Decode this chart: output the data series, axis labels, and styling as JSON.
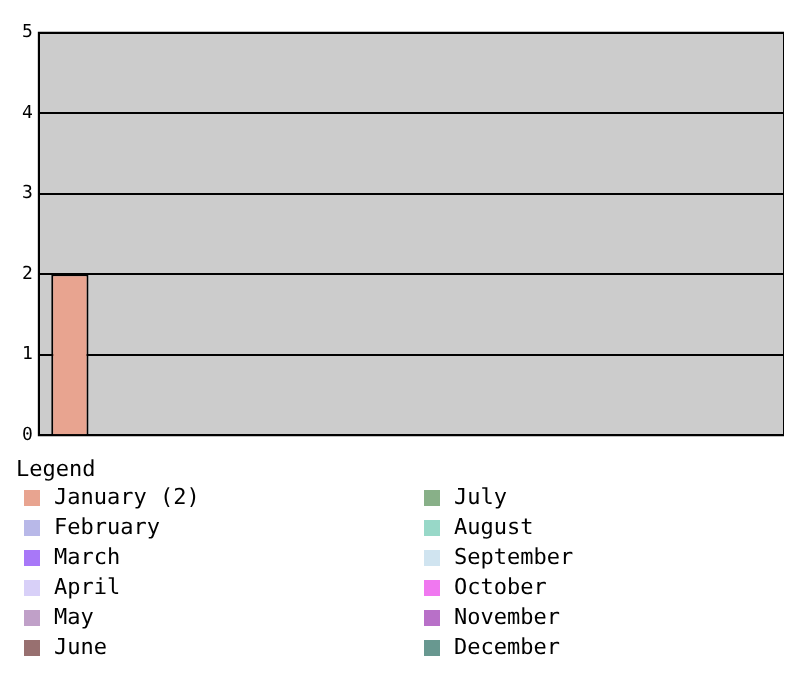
{
  "chart_data": {
    "type": "bar",
    "categories": [
      null,
      null,
      null,
      null,
      null,
      null,
      null,
      null,
      null,
      null,
      null,
      null
    ],
    "series": [
      {
        "name": "January (2)",
        "color": "#e8a490",
        "values": [
          2,
          null,
          null,
          null,
          null,
          null,
          null,
          null,
          null,
          null,
          null,
          null
        ]
      },
      {
        "name": "February",
        "color": "#b8b8e8",
        "values": [
          null,
          0,
          null,
          null,
          null,
          null,
          null,
          null,
          null,
          null,
          null,
          null
        ]
      },
      {
        "name": "March",
        "color": "#a878f8",
        "values": [
          null,
          null,
          0,
          null,
          null,
          null,
          null,
          null,
          null,
          null,
          null,
          null
        ]
      },
      {
        "name": "April",
        "color": "#d8d0f8",
        "values": [
          null,
          null,
          null,
          0,
          null,
          null,
          null,
          null,
          null,
          null,
          null,
          null
        ]
      },
      {
        "name": "May",
        "color": "#c0a0c8",
        "values": [
          null,
          null,
          null,
          null,
          0,
          null,
          null,
          null,
          null,
          null,
          null,
          null
        ]
      },
      {
        "name": "June",
        "color": "#987070",
        "values": [
          null,
          null,
          null,
          null,
          null,
          0,
          null,
          null,
          null,
          null,
          null,
          null
        ]
      },
      {
        "name": "July",
        "color": "#88b088",
        "values": [
          null,
          null,
          null,
          null,
          null,
          null,
          0,
          null,
          null,
          null,
          null,
          null
        ]
      },
      {
        "name": "August",
        "color": "#98d8c8",
        "values": [
          null,
          null,
          null,
          null,
          null,
          null,
          null,
          0,
          null,
          null,
          null,
          null
        ]
      },
      {
        "name": "September",
        "color": "#d0e4f0",
        "values": [
          null,
          null,
          null,
          null,
          null,
          null,
          null,
          null,
          0,
          null,
          null,
          null
        ]
      },
      {
        "name": "October",
        "color": "#f078f0",
        "values": [
          null,
          null,
          null,
          null,
          null,
          null,
          null,
          null,
          null,
          0,
          null,
          null
        ]
      },
      {
        "name": "November",
        "color": "#b870c8",
        "values": [
          null,
          null,
          null,
          null,
          null,
          null,
          null,
          null,
          null,
          null,
          0,
          null
        ]
      },
      {
        "name": "December",
        "color": "#689890",
        "values": [
          null,
          null,
          null,
          null,
          null,
          null,
          null,
          null,
          null,
          null,
          null,
          0
        ]
      }
    ],
    "ylim": [
      0,
      5
    ],
    "yticks": [
      0,
      1,
      2,
      3,
      4,
      5
    ],
    "grid": "y",
    "legend": "bottom",
    "legend_title": "Legend",
    "tick_labels": "y"
  }
}
